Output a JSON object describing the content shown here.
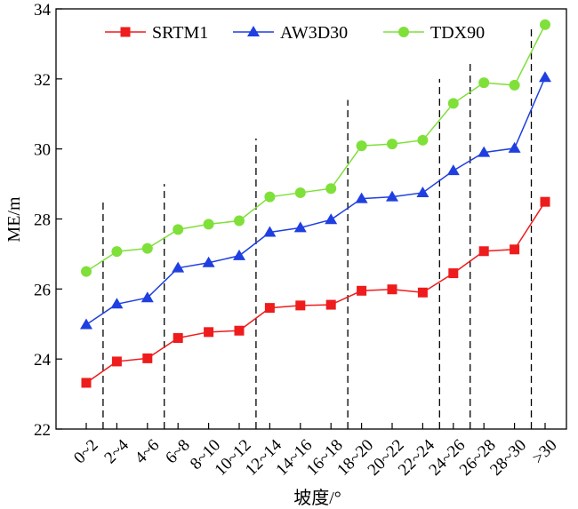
{
  "chart_data": {
    "type": "line",
    "title": "",
    "xlabel": "坡度/°",
    "ylabel": "ME/m",
    "ylim": [
      22,
      34
    ],
    "yticks": [
      22,
      24,
      26,
      28,
      30,
      32,
      34
    ],
    "grid": false,
    "legend_position": "top",
    "categories": [
      "0~2",
      "2~4",
      "4~6",
      "6~8",
      "8~10",
      "10~12",
      "12~14",
      "14~16",
      "16~18",
      "18~20",
      "20~22",
      "22~24",
      "24~26",
      "26~28",
      "28~30",
      ">30"
    ],
    "series": [
      {
        "name": "SRTM1",
        "color": "#ee1c1c",
        "marker": "square",
        "values": [
          23.32,
          23.93,
          24.02,
          24.6,
          24.77,
          24.81,
          25.46,
          25.53,
          25.55,
          25.95,
          25.99,
          25.9,
          26.45,
          27.08,
          27.13,
          28.49
        ]
      },
      {
        "name": "AW3D30",
        "color": "#1f3fe0",
        "marker": "triangle",
        "values": [
          24.98,
          25.57,
          25.75,
          26.6,
          26.75,
          26.95,
          27.62,
          27.75,
          27.98,
          28.58,
          28.63,
          28.75,
          29.38,
          29.9,
          30.02,
          32.04
        ]
      },
      {
        "name": "TDX90",
        "color": "#7fe03a",
        "marker": "circle",
        "values": [
          26.5,
          27.07,
          27.16,
          27.7,
          27.85,
          27.95,
          28.63,
          28.75,
          28.87,
          30.09,
          30.14,
          30.25,
          31.3,
          31.89,
          31.82,
          33.55
        ]
      }
    ],
    "vlines": [
      {
        "after_index": 0.5,
        "y_top": 28.5
      },
      {
        "after_index": 3.5,
        "y_top": 29.0
      },
      {
        "after_index": 7.0,
        "y_top": 30.3
      },
      {
        "after_index": 11.0,
        "y_top": 31.4
      },
      {
        "after_index": 14.5,
        "y_top": 32.0
      },
      {
        "after_index": 16.0,
        "y_top": 32.5
      },
      {
        "after_index": 19.5,
        "y_top": 33.5
      }
    ]
  }
}
